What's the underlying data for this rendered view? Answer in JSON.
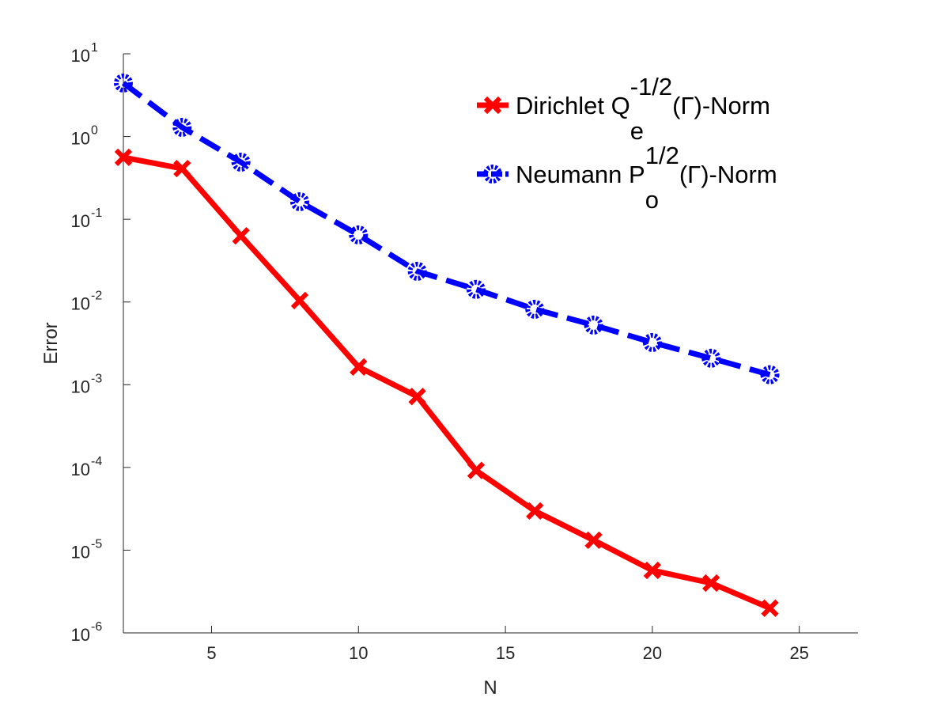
{
  "chart_data": {
    "type": "line",
    "xlabel": "N",
    "ylabel": "Error",
    "xlim": [
      2,
      27
    ],
    "ylim": [
      1e-06,
      10
    ],
    "yscale": "log",
    "grid": false,
    "legend_placement": "top-right",
    "x_ticks": [
      5,
      10,
      15,
      20,
      25
    ],
    "y_ticks": [
      {
        "base": "10",
        "exp": "1",
        "value": 10
      },
      {
        "base": "10",
        "exp": "0",
        "value": 1
      },
      {
        "base": "10",
        "exp": "-1",
        "value": 0.1
      },
      {
        "base": "10",
        "exp": "-2",
        "value": 0.01
      },
      {
        "base": "10",
        "exp": "-3",
        "value": 0.001
      },
      {
        "base": "10",
        "exp": "-4",
        "value": 0.0001
      },
      {
        "base": "10",
        "exp": "-5",
        "value": 1e-05
      },
      {
        "base": "10",
        "exp": "-6",
        "value": 1e-06
      }
    ],
    "x": [
      2,
      4,
      6,
      8,
      10,
      12,
      14,
      16,
      18,
      20,
      22,
      24
    ],
    "series": [
      {
        "name": "Dirichlet Q_e^{-1/2}(Γ)-Norm",
        "legend": {
          "base": "Dirichlet Q",
          "sub": "e",
          "sup": "-1/2",
          "rest": "(Γ)-Norm"
        },
        "color": "#ff0000",
        "line_style": "solid",
        "marker": "x",
        "values": [
          0.56,
          0.41,
          0.063,
          0.0104,
          0.00164,
          0.00072,
          9.2e-05,
          2.98e-05,
          1.32e-05,
          5.7e-06,
          4e-06,
          1.99e-06
        ]
      },
      {
        "name": "Neumann P_o^{1/2}(Γ)-Norm",
        "legend": {
          "base": "Neumann P",
          "sub": "o",
          "sup": "1/2",
          "rest": "(Γ)-Norm"
        },
        "color": "#0000ff",
        "line_style": "dashed",
        "marker": "circle",
        "values": [
          4.43,
          1.29,
          0.49,
          0.163,
          0.0647,
          0.0235,
          0.0142,
          0.00817,
          0.00526,
          0.00324,
          0.00209,
          0.00132
        ]
      }
    ]
  }
}
